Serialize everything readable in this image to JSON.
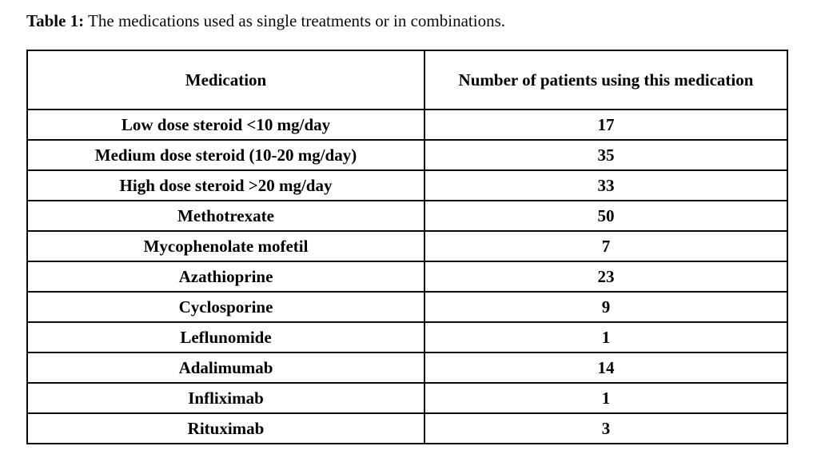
{
  "caption": {
    "label": "Table 1:",
    "text": " The medications used as single treatments or in combinations."
  },
  "table": {
    "headers": [
      "Medication",
      "Number of patients using this medication"
    ],
    "rows": [
      {
        "medication": "Low dose steroid <10 mg/day",
        "patients": "17"
      },
      {
        "medication": "Medium dose steroid (10-20 mg/day)",
        "patients": "35"
      },
      {
        "medication": "High dose steroid >20 mg/day",
        "patients": "33"
      },
      {
        "medication": "Methotrexate",
        "patients": "50"
      },
      {
        "medication": "Mycophenolate mofetil",
        "patients": "7"
      },
      {
        "medication": "Azathioprine",
        "patients": "23"
      },
      {
        "medication": "Cyclosporine",
        "patients": "9"
      },
      {
        "medication": "Leflunomide",
        "patients": "1"
      },
      {
        "medication": "Adalimumab",
        "patients": "14"
      },
      {
        "medication": "Infliximab",
        "patients": "1"
      },
      {
        "medication": "Rituximab",
        "patients": "3"
      }
    ]
  },
  "colors": {
    "text": "#000000",
    "border": "#0a0a0a",
    "background": "#ffffff"
  }
}
